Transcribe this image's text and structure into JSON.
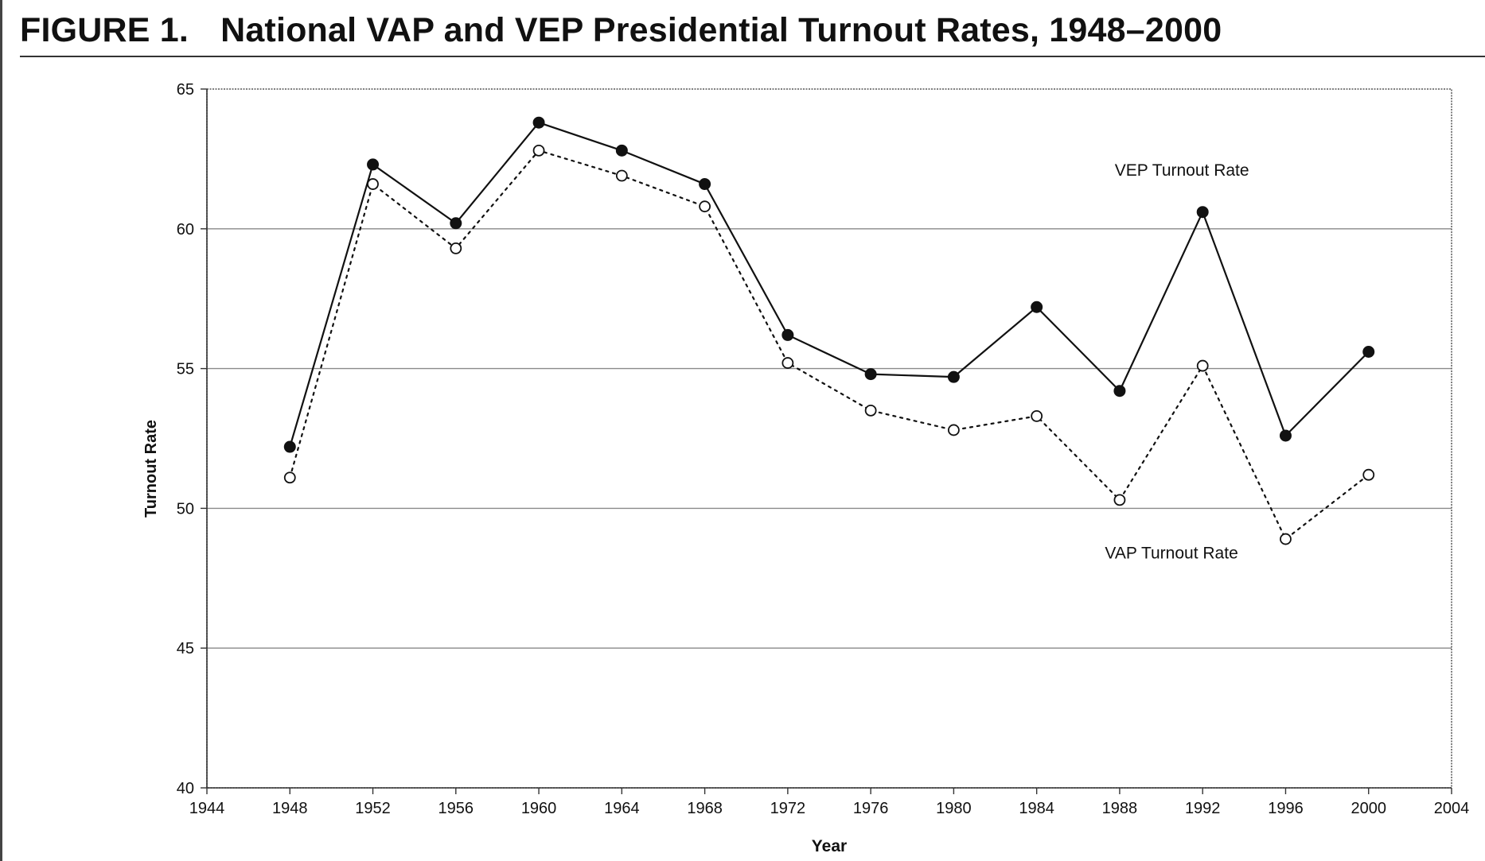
{
  "figure": {
    "label": "FIGURE 1.",
    "title": "National VAP and VEP Presidential Turnout Rates, 1948–2000"
  },
  "chart_data": {
    "type": "line",
    "title": "National VAP and VEP Presidential Turnout Rates, 1948–2000",
    "xlabel": "Year",
    "ylabel": "Turnout Rate",
    "xlim": [
      1944,
      2004
    ],
    "ylim": [
      40,
      65
    ],
    "x_ticks": [
      1944,
      1948,
      1952,
      1956,
      1960,
      1964,
      1968,
      1972,
      1976,
      1980,
      1984,
      1988,
      1992,
      1996,
      2000,
      2004
    ],
    "y_ticks": [
      40,
      45,
      50,
      55,
      60,
      65
    ],
    "grid": "horizontal",
    "x": [
      1948,
      1952,
      1956,
      1960,
      1964,
      1968,
      1972,
      1976,
      1980,
      1984,
      1988,
      1992,
      1996,
      2000
    ],
    "series": [
      {
        "name": "VEP Turnout Rate",
        "style": "solid line, filled circles",
        "color": "#111111",
        "values": [
          52.2,
          62.3,
          60.2,
          63.8,
          62.8,
          61.6,
          56.2,
          54.8,
          54.7,
          57.2,
          54.2,
          60.6,
          52.6,
          55.6
        ]
      },
      {
        "name": "VAP Turnout Rate",
        "style": "dotted line, open circles",
        "color": "#111111",
        "values": [
          51.1,
          61.6,
          59.3,
          62.8,
          61.9,
          60.8,
          55.2,
          53.5,
          52.8,
          53.3,
          50.3,
          55.1,
          48.9,
          51.2
        ]
      }
    ],
    "annotations": [
      {
        "text": "VEP Turnout Rate",
        "x": 1991,
        "y": 61.9
      },
      {
        "text": "VAP Turnout Rate",
        "x": 1990.5,
        "y": 48.2
      }
    ]
  }
}
